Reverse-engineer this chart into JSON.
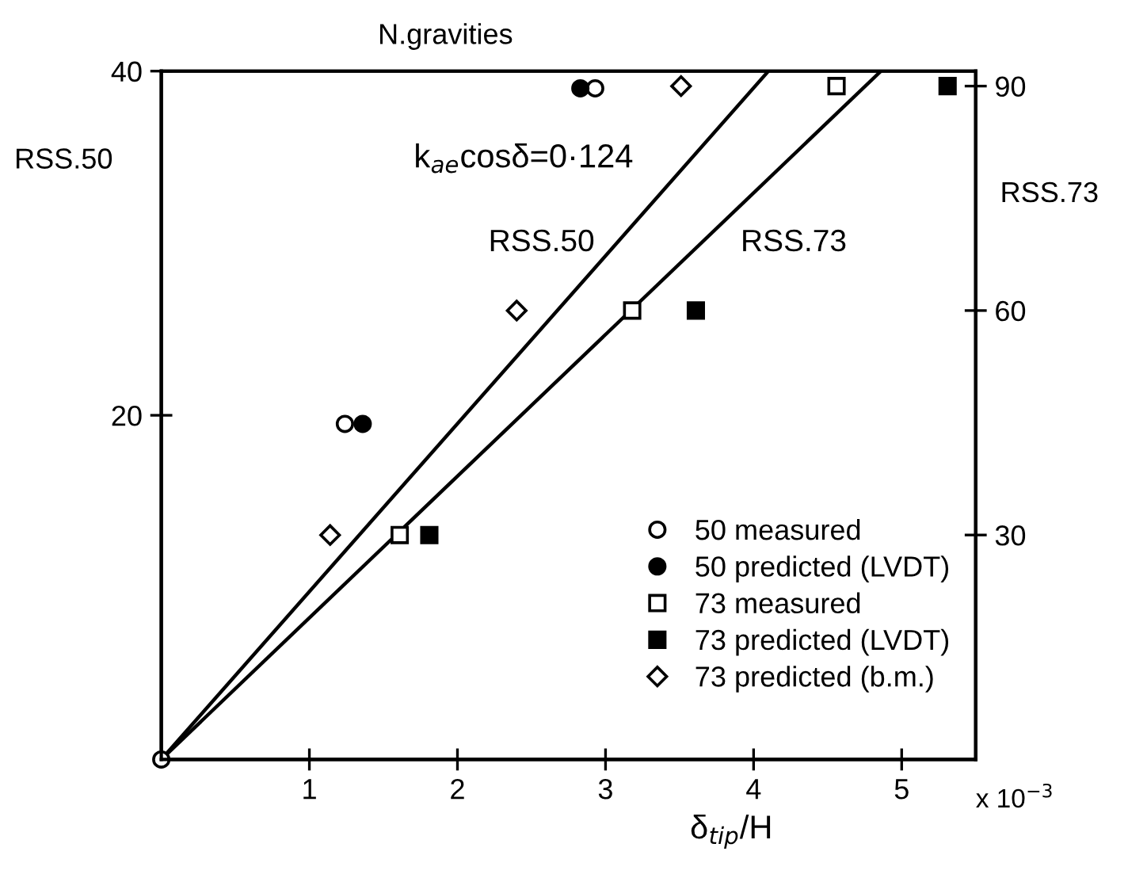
{
  "chart_data": {
    "type": "scatter",
    "title": "N.gravities",
    "xlabel": "δ$_{tip}$/H",
    "ylabel": "RSS.50",
    "y2label": "RSS.73",
    "annotations": [
      "k$_{ae}$cosδ=0·124",
      "x 10$^{−3}$"
    ],
    "xlim": [
      0,
      5.5
    ],
    "xticks": [
      1,
      2,
      3,
      4,
      5
    ],
    "ylim": [
      0,
      40
    ],
    "yticks": [
      20,
      40
    ],
    "y2lim": [
      0,
      92
    ],
    "y2ticks": [
      30,
      60,
      90
    ],
    "grid": false,
    "legend": "bottom right",
    "series": [
      {
        "name": "50 measured",
        "color": "#ffffff",
        "marker": "circle",
        "x": [
          0,
          1.24,
          2.93
        ],
        "values": [
          0,
          19.5,
          39
        ]
      },
      {
        "name": "50 predicted (LVDT)",
        "color": "#000000",
        "marker": "circle",
        "x": [
          1.36,
          2.83
        ],
        "values": [
          19.5,
          39
        ]
      },
      {
        "name": "73 measured",
        "color": "#ffffff",
        "marker": "square",
        "axis": "y2",
        "x": [
          1.61,
          3.18,
          4.56
        ],
        "values": [
          30,
          60,
          90
        ]
      },
      {
        "name": "73 predicted (LVDT)",
        "color": "#000000",
        "marker": "square",
        "axis": "y2",
        "x": [
          1.81,
          3.61,
          5.31
        ],
        "values": [
          30,
          60,
          90
        ]
      },
      {
        "name": "73 predicted (b.m.)",
        "color": "#ffffff",
        "marker": "diamond",
        "axis": "y2",
        "x": [
          1.14,
          2.4,
          3.51
        ],
        "values": [
          30,
          60,
          90
        ]
      },
      {
        "name": "RSS.50",
        "type": "line",
        "color": "#000000",
        "marker": "none",
        "line_style": "solid",
        "x": [
          0,
          4.1
        ],
        "values": [
          0,
          40
        ]
      },
      {
        "name": "RSS.73",
        "type": "line",
        "color": "#000000",
        "marker": "none",
        "line_style": "solid",
        "x": [
          0,
          4.86
        ],
        "values": [
          0,
          40
        ]
      }
    ]
  }
}
